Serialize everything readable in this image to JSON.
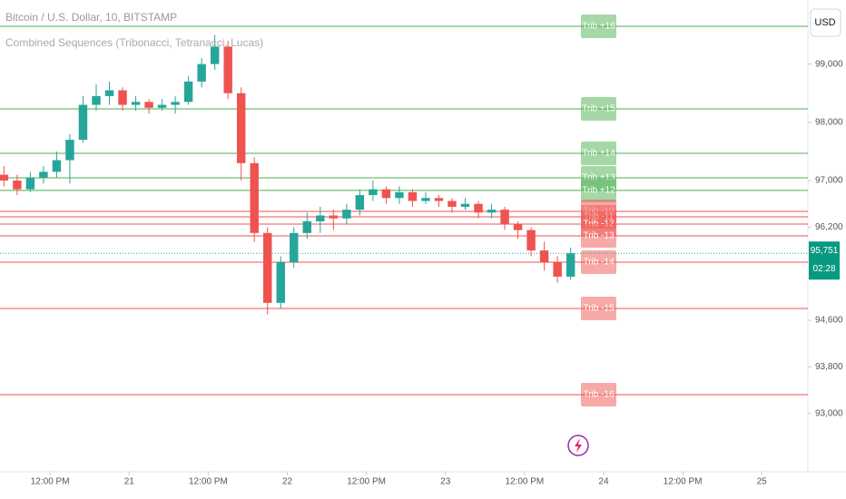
{
  "chart_data": {
    "type": "candlestick",
    "title": "Bitcoin / U.S. Dollar, 10, BITSTAMP",
    "subtitle": "Combined Sequences (Tribonacci, Tetranacci, Lucas)",
    "currency": "USD",
    "up_color": "#26a69a",
    "down_color": "#ef5350",
    "x": [
      5,
      7,
      9,
      11,
      13,
      15,
      17,
      19,
      21,
      23,
      25,
      27,
      29,
      31,
      33,
      35,
      37,
      39,
      41,
      43,
      45,
      47,
      49,
      51,
      53,
      55,
      57,
      59,
      61,
      63,
      65,
      67,
      69,
      71,
      73,
      75,
      77,
      79,
      81,
      83,
      85,
      87,
      89,
      91
    ],
    "open": [
      97100,
      97000,
      96850,
      97050,
      97150,
      97350,
      97700,
      98300,
      98450,
      98550,
      98300,
      98350,
      98250,
      98300,
      98350,
      98700,
      99000,
      99300,
      98500,
      97300,
      96100,
      94900,
      95600,
      96100,
      96300,
      96400,
      96350,
      96500,
      96750,
      96850,
      96700,
      96800,
      96650,
      96700,
      96650,
      96550,
      96600,
      96450,
      96500,
      96250,
      96150,
      95800,
      95600,
      95350
    ],
    "high": [
      97250,
      97100,
      97150,
      97250,
      97500,
      97800,
      98450,
      98650,
      98700,
      98600,
      98450,
      98400,
      98400,
      98450,
      98800,
      99100,
      99500,
      99400,
      98600,
      97400,
      96200,
      95700,
      96200,
      96450,
      96550,
      96500,
      96600,
      96850,
      97000,
      96900,
      96900,
      96850,
      96800,
      96750,
      96700,
      96700,
      96650,
      96600,
      96550,
      96300,
      96200,
      95950,
      95700,
      95850
    ],
    "low": [
      96900,
      96750,
      96800,
      96950,
      97050,
      96950,
      97650,
      98200,
      98300,
      98200,
      98200,
      98150,
      98200,
      98150,
      98300,
      98600,
      98900,
      98400,
      97000,
      95950,
      94700,
      94800,
      95500,
      96000,
      96100,
      96150,
      96250,
      96400,
      96650,
      96600,
      96600,
      96550,
      96600,
      96550,
      96450,
      96500,
      96350,
      96350,
      96150,
      96000,
      95700,
      95450,
      95250,
      95300
    ],
    "close": [
      97000,
      96850,
      97050,
      97150,
      97350,
      97700,
      98300,
      98450,
      98550,
      98300,
      98350,
      98250,
      98300,
      98350,
      98700,
      99000,
      99300,
      98500,
      97300,
      96100,
      94900,
      95600,
      96100,
      96300,
      96400,
      96350,
      96500,
      96750,
      96850,
      96700,
      96800,
      96650,
      96700,
      96650,
      96550,
      96600,
      96450,
      96500,
      96250,
      96150,
      95800,
      95600,
      95350,
      95751
    ],
    "last_value": 95751,
    "last_value_label": "95,751",
    "countdown": "02:28",
    "xlim": [
      4.4,
      127
    ],
    "ylim": [
      92000,
      100100
    ],
    "xticks": [
      {
        "value": 12,
        "label": "12:00 PM"
      },
      {
        "value": 24,
        "label": "21"
      },
      {
        "value": 36,
        "label": "12:00 PM"
      },
      {
        "value": 48,
        "label": "22"
      },
      {
        "value": 60,
        "label": "12:00 PM"
      },
      {
        "value": 72,
        "label": "23"
      },
      {
        "value": 84,
        "label": "12:00 PM"
      },
      {
        "value": 96,
        "label": "24"
      },
      {
        "value": 108,
        "label": "12:00 PM"
      },
      {
        "value": 120,
        "label": "25"
      }
    ],
    "yticks": [
      {
        "value": 99000,
        "label": "99,000"
      },
      {
        "value": 98000,
        "label": "98,000"
      },
      {
        "value": 97000,
        "label": "97,000"
      },
      {
        "value": 96200,
        "label": "96,200"
      },
      {
        "value": 94600,
        "label": "94,600"
      },
      {
        "value": 93800,
        "label": "93,800"
      },
      {
        "value": 93000,
        "label": "93,000"
      }
    ],
    "levels": [
      {
        "name": "Trib +16",
        "value": 99648,
        "color": "#4caf50"
      },
      {
        "name": "Trib +15",
        "value": 98230,
        "color": "#4caf50"
      },
      {
        "name": "Trib +14",
        "value": 97467,
        "color": "#4caf50"
      },
      {
        "name": "Trib +13",
        "value": 97047,
        "color": "#4caf50"
      },
      {
        "name": "Trib +12",
        "value": 96830,
        "color": "#4caf50"
      },
      {
        "name": "Trib -10",
        "value": 96470,
        "color": "#ef5350"
      },
      {
        "name": "Trib -11",
        "value": 96377,
        "color": "#ef5350"
      },
      {
        "name": "Trib -12",
        "value": 96252,
        "color": "#ef5350"
      },
      {
        "name": "Trib -13",
        "value": 96050,
        "color": "#ef5350"
      },
      {
        "name": "Trib -14",
        "value": 95598,
        "color": "#ef5350"
      },
      {
        "name": "Trib -15",
        "value": 94804,
        "color": "#ef5350"
      },
      {
        "name": "Trib -16",
        "value": 93324,
        "color": "#ef5350"
      }
    ]
  }
}
